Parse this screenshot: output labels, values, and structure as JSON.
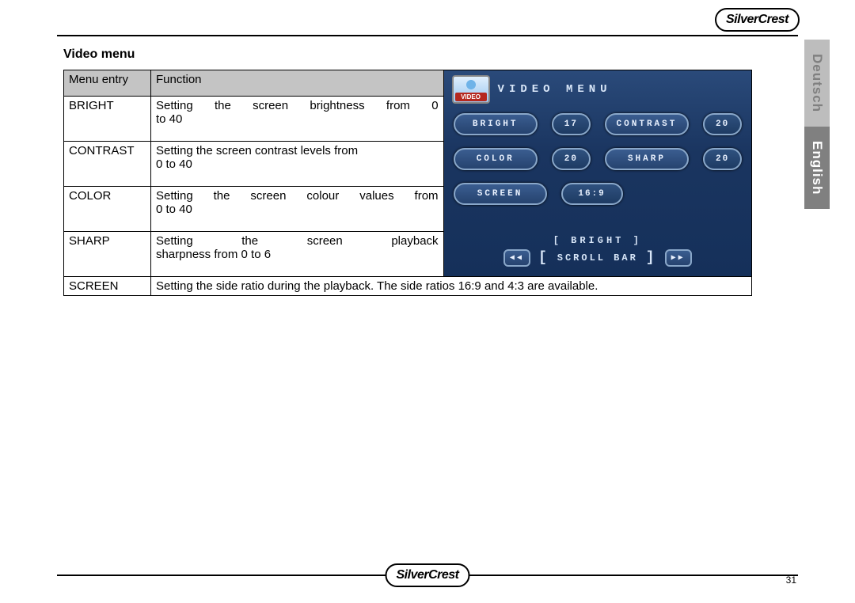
{
  "brand": "SilverCrest",
  "page_number": "31",
  "tabs": {
    "deutsch": "Deutsch",
    "english": "English"
  },
  "section_title": "Video menu",
  "table": {
    "headers": {
      "menu_entry": "Menu entry",
      "function": "Function"
    },
    "rows": [
      {
        "entry": "BRIGHT",
        "func_l1": "Setting  the  screen  brightness  from  0",
        "func_l2": "to 40"
      },
      {
        "entry": "CONTRAST",
        "func_l1": "Setting the screen contrast levels from",
        "func_l2": "0 to 40"
      },
      {
        "entry": "COLOR",
        "func_l1": "Setting  the  screen  colour  values  from",
        "func_l2": "0 to 40"
      },
      {
        "entry": "SHARP",
        "func_l1": "Setting     the     screen     playback",
        "func_l2": "sharpness from 0 to 6"
      },
      {
        "entry": "SCREEN",
        "func_full": "Setting  the  side  ratio  during  the  playback.  The  side  ratios  16:9  and  4:3  are available."
      }
    ]
  },
  "screenshot": {
    "title": "VIDEO MENU",
    "video_badge": "VIDEO",
    "items": [
      {
        "label": "BRIGHT",
        "value": "17"
      },
      {
        "label": "CONTRAST",
        "value": "20"
      },
      {
        "label": "COLOR",
        "value": "20"
      },
      {
        "label": "SHARP",
        "value": "20"
      },
      {
        "label": "SCREEN",
        "value": "16:9"
      }
    ],
    "selected_label": "BRIGHT",
    "scroll_label": "SCROLL BAR",
    "arrow_left": "◀◀",
    "arrow_right": "▶▶",
    "bracket_l": "[",
    "bracket_r": "]"
  }
}
